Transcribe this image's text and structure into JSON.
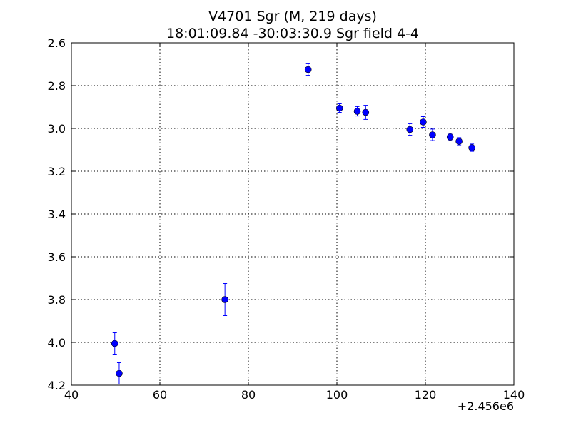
{
  "chart_data": {
    "type": "scatter",
    "title": "V4701 Sgr (M, 219 days)",
    "subtitle": "18:01:09.84 -30:03:30.9 Sgr field 4-4",
    "xlabel": "",
    "ylabel": "",
    "x_offset_label": "+2.456e6",
    "xlim": [
      40,
      140
    ],
    "ylim": [
      4.2,
      2.6
    ],
    "y_inverted": true,
    "xticks": [
      40,
      60,
      80,
      100,
      120,
      140
    ],
    "yticks": [
      2.6,
      2.8,
      3.0,
      3.2,
      3.4,
      3.6,
      3.8,
      4.0,
      4.2
    ],
    "xtick_labels": [
      "40",
      "60",
      "80",
      "100",
      "120",
      "140"
    ],
    "ytick_labels": [
      "2.6",
      "2.8",
      "3.0",
      "3.2",
      "3.4",
      "3.6",
      "3.8",
      "4.0",
      "4.2"
    ],
    "grid": true,
    "marker_color": "#0000ff",
    "points": [
      {
        "x": 49.8,
        "y": 4.005,
        "err": 0.05
      },
      {
        "x": 50.8,
        "y": 4.145,
        "err": 0.05
      },
      {
        "x": 74.7,
        "y": 3.8,
        "err": 0.075
      },
      {
        "x": 93.5,
        "y": 2.725,
        "err": 0.027
      },
      {
        "x": 100.6,
        "y": 2.905,
        "err": 0.02
      },
      {
        "x": 104.6,
        "y": 2.92,
        "err": 0.022
      },
      {
        "x": 106.5,
        "y": 2.925,
        "err": 0.033
      },
      {
        "x": 116.5,
        "y": 3.005,
        "err": 0.027
      },
      {
        "x": 119.5,
        "y": 2.97,
        "err": 0.025
      },
      {
        "x": 121.6,
        "y": 3.03,
        "err": 0.027
      },
      {
        "x": 125.6,
        "y": 3.04,
        "err": 0.017
      },
      {
        "x": 127.6,
        "y": 3.06,
        "err": 0.017
      },
      {
        "x": 130.5,
        "y": 3.09,
        "err": 0.017
      }
    ]
  }
}
